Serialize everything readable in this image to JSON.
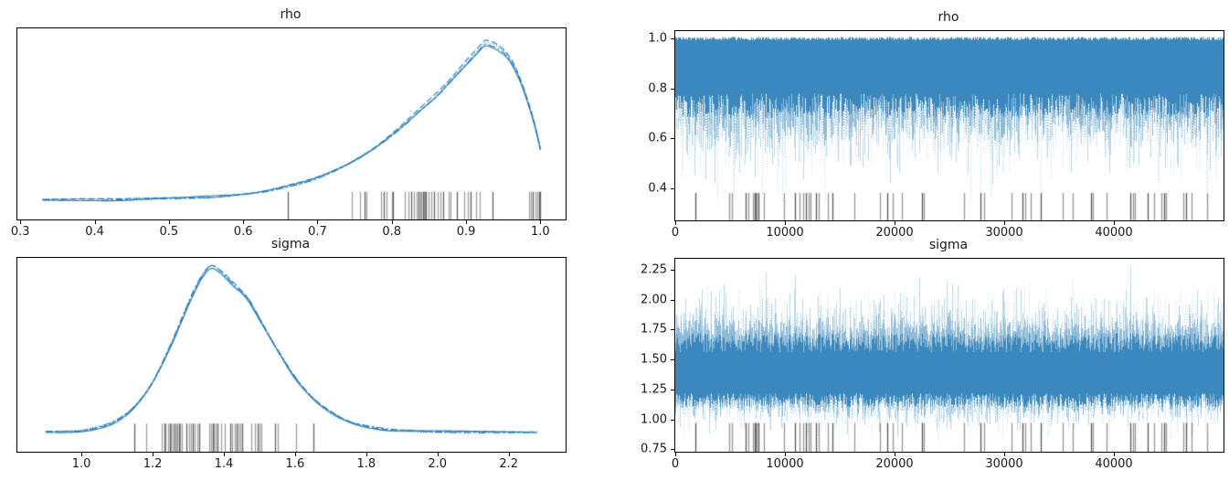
{
  "figure": {
    "background": "#ffffff",
    "colors": {
      "line": "#1f77b4",
      "rug": "#3c3c3c",
      "spine": "#000000",
      "text": "#1a1a1a"
    }
  },
  "chart_data": [
    {
      "id": "rho-kde",
      "type": "line",
      "variant": "kde",
      "title": "rho",
      "xlabel": "",
      "ylabel": "",
      "n_chains": 4,
      "xlim": [
        0.296,
        1.034
      ],
      "xticks": [
        0.3,
        0.4,
        0.5,
        0.6,
        0.7,
        0.8,
        0.9,
        1.0
      ],
      "xtick_labels": [
        "0.3",
        "0.4",
        "0.5",
        "0.6",
        "0.7",
        "0.8",
        "0.9",
        "1.0"
      ],
      "baseline_frac": 0.1,
      "peak_frac": 0.92,
      "rug_frac": 0.145,
      "curve_x": [
        0.33,
        0.38,
        0.43,
        0.48,
        0.52,
        0.56,
        0.6,
        0.63,
        0.66,
        0.69,
        0.72,
        0.75,
        0.78,
        0.81,
        0.84,
        0.86,
        0.88,
        0.9,
        0.915,
        0.925,
        0.935,
        0.945,
        0.955,
        0.965,
        0.975,
        0.985,
        0.993,
        1.0
      ],
      "curve_y": [
        0.004,
        0.005,
        0.007,
        0.011,
        0.016,
        0.024,
        0.04,
        0.06,
        0.09,
        0.13,
        0.185,
        0.26,
        0.35,
        0.46,
        0.585,
        0.67,
        0.77,
        0.875,
        0.955,
        1.0,
        0.995,
        0.97,
        0.925,
        0.85,
        0.74,
        0.6,
        0.47,
        0.33
      ],
      "rug": [
        0.66,
        0.746,
        0.757,
        0.764,
        0.766,
        0.786,
        0.789,
        0.793,
        0.8,
        0.802,
        0.818,
        0.822,
        0.826,
        0.83,
        0.833,
        0.836,
        0.838,
        0.84,
        0.842,
        0.843,
        0.844,
        0.846,
        0.849,
        0.853,
        0.857,
        0.862,
        0.866,
        0.869,
        0.876,
        0.879,
        0.888,
        0.898,
        0.902,
        0.906,
        0.913,
        0.918,
        0.936,
        0.985,
        0.987,
        0.99,
        0.994,
        0.996,
        0.998,
        0.999,
        1.0
      ]
    },
    {
      "id": "rho-trace",
      "type": "line",
      "variant": "trace",
      "title": "rho",
      "xlabel": "",
      "ylabel": "",
      "n_chains": 4,
      "xlim": [
        0,
        50000
      ],
      "ylim": [
        0.27,
        1.03
      ],
      "xticks": [
        0,
        10000,
        20000,
        30000,
        40000
      ],
      "xtick_labels": [
        "0",
        "10000",
        "20000",
        "30000",
        "40000"
      ],
      "yticks": [
        0.4,
        0.6,
        0.8,
        1.0
      ],
      "ytick_labels": [
        "0.4",
        "0.6",
        "0.8",
        "1.0"
      ],
      "rug_top": 0.38,
      "envelope": {
        "core_top": [
          0.993,
          1.006
        ],
        "core_bottom": [
          0.68,
          0.78
        ],
        "feather_top_len": [
          0.0,
          0.004
        ],
        "feather_bottom_len": [
          0.02,
          0.12
        ],
        "top_spike_prob": 0.0,
        "top_spike_len": [
          0,
          0
        ],
        "top_clip": 1.01,
        "bottom_spike_prob": 0.75,
        "bottom_spike_len": [
          0.03,
          0.25
        ],
        "bottom_clip": 0.33,
        "deep_prob": 0.02,
        "deep_range": [
          0.33,
          0.45
        ]
      },
      "rug": [
        1800,
        4950,
        5150,
        6400,
        6650,
        7100,
        7250,
        7350,
        7450,
        7600,
        8050,
        9900,
        10900,
        11300,
        11700,
        11950,
        12150,
        12350,
        12800,
        13050,
        13950,
        14350,
        16300,
        18700,
        19350,
        19850,
        20700,
        22500,
        22700,
        26300,
        27800,
        28150,
        30700,
        31700,
        31950,
        32450,
        33300,
        35300,
        36250,
        37900,
        38100,
        39300,
        41500,
        41750,
        41950,
        43100,
        43650,
        44300,
        44550,
        44750,
        46300,
        46600,
        47050,
        48500
      ]
    },
    {
      "id": "sigma-kde",
      "type": "line",
      "variant": "kde",
      "title": "sigma",
      "xlabel": "",
      "ylabel": "",
      "n_chains": 4,
      "xlim": [
        0.82,
        2.36
      ],
      "xticks": [
        1.0,
        1.2,
        1.4,
        1.6,
        1.8,
        2.0,
        2.2
      ],
      "xtick_labels": [
        "1.0",
        "1.2",
        "1.4",
        "1.6",
        "1.8",
        "2.0",
        "2.2"
      ],
      "baseline_frac": 0.1,
      "peak_frac": 0.95,
      "rug_frac": 0.145,
      "curve_x": [
        0.9,
        0.95,
        1.0,
        1.05,
        1.1,
        1.15,
        1.2,
        1.25,
        1.28,
        1.31,
        1.34,
        1.365,
        1.39,
        1.41,
        1.43,
        1.45,
        1.47,
        1.5,
        1.53,
        1.56,
        1.6,
        1.65,
        1.7,
        1.75,
        1.8,
        1.86,
        1.92,
        2.0,
        2.1,
        2.2,
        2.28
      ],
      "curve_y": [
        0.002,
        0.004,
        0.01,
        0.03,
        0.07,
        0.155,
        0.3,
        0.52,
        0.67,
        0.82,
        0.945,
        1.0,
        0.975,
        0.935,
        0.89,
        0.85,
        0.8,
        0.69,
        0.575,
        0.465,
        0.33,
        0.205,
        0.12,
        0.068,
        0.038,
        0.02,
        0.012,
        0.007,
        0.004,
        0.002,
        0.001
      ],
      "rug": [
        1.148,
        1.182,
        1.226,
        1.232,
        1.237,
        1.243,
        1.248,
        1.252,
        1.257,
        1.262,
        1.266,
        1.27,
        1.274,
        1.278,
        1.283,
        1.295,
        1.302,
        1.308,
        1.313,
        1.318,
        1.325,
        1.332,
        1.358,
        1.363,
        1.368,
        1.372,
        1.376,
        1.381,
        1.392,
        1.402,
        1.418,
        1.424,
        1.43,
        1.436,
        1.442,
        1.447,
        1.452,
        1.478,
        1.488,
        1.494,
        1.5,
        1.506,
        1.545,
        1.552,
        1.602,
        1.652
      ]
    },
    {
      "id": "sigma-trace",
      "type": "line",
      "variant": "trace",
      "title": "sigma",
      "xlabel": "",
      "ylabel": "",
      "n_chains": 4,
      "xlim": [
        0,
        50000
      ],
      "ylim": [
        0.73,
        2.34
      ],
      "xticks": [
        0,
        10000,
        20000,
        30000,
        40000
      ],
      "xtick_labels": [
        "0",
        "10000",
        "20000",
        "30000",
        "40000"
      ],
      "yticks": [
        2.25,
        2.0,
        1.75,
        1.5,
        1.25,
        1.0,
        0.75
      ],
      "ytick_labels": [
        "2.25",
        "2.00",
        "1.75",
        "1.50",
        "1.25",
        "1.00",
        "0.75"
      ],
      "rug_top": 0.97,
      "envelope": {
        "core_top": [
          1.56,
          1.72
        ],
        "core_bottom": [
          1.1,
          1.22
        ],
        "feather_top_len": [
          0.02,
          0.18
        ],
        "feather_bottom_len": [
          0.02,
          0.1
        ],
        "top_spike_prob": 0.8,
        "top_spike_len": [
          0.05,
          0.45
        ],
        "top_clip": 2.29,
        "bottom_spike_prob": 0.5,
        "bottom_spike_len": [
          0.03,
          0.28
        ],
        "bottom_clip": 0.8,
        "deep_prob": 0.0,
        "deep_range": [
          0,
          0
        ]
      },
      "rug": [
        1800,
        4950,
        5150,
        6400,
        6650,
        7100,
        7250,
        7350,
        7450,
        7600,
        8050,
        9900,
        10900,
        11300,
        11700,
        11950,
        12150,
        12350,
        12800,
        13050,
        13950,
        14350,
        16300,
        18700,
        19350,
        19850,
        20700,
        22500,
        22700,
        26300,
        27800,
        28150,
        30700,
        31700,
        31950,
        32450,
        33300,
        35300,
        36250,
        37900,
        38100,
        39300,
        41500,
        41750,
        41950,
        43100,
        43650,
        44300,
        44550,
        44750,
        46300,
        46600,
        47050,
        48500
      ]
    }
  ]
}
